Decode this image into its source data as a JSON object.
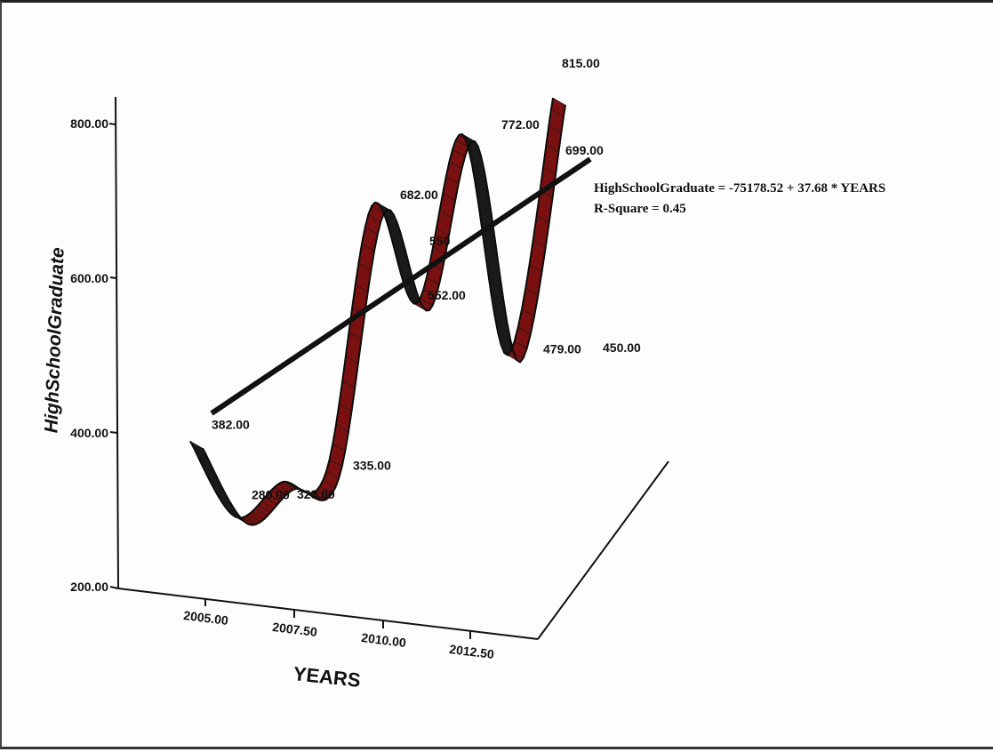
{
  "chart_data": {
    "type": "line",
    "xlabel": "YEARS",
    "ylabel": "HighSchoolGraduate",
    "x_ticks": [
      "2005.00",
      "2007.50",
      "2010.00",
      "2012.50"
    ],
    "y_ticks": [
      "200.00",
      "400.00",
      "600.00",
      "800.00"
    ],
    "series": [
      {
        "x": [
          2005,
          2006,
          2007,
          2008,
          2009,
          2010,
          2011,
          2012,
          2013
        ],
        "values": [
          382,
          280,
          323,
          335,
          682,
          552,
          772,
          479,
          815
        ],
        "labels": [
          "382.00",
          "280.00",
          "323.00",
          "335.00",
          "682.00",
          "552.00",
          "772.00",
          "479.00",
          "815.00"
        ]
      }
    ],
    "extra_labels": [
      "550",
      "699.00",
      "450.00"
    ],
    "fit_line": {
      "equation": "HighSchoolGraduate = -75178.52 + 37.68 * YEARS",
      "r_square": "R-Square = 0.45"
    },
    "ylim": [
      200,
      800
    ],
    "colors": {
      "ribbon_dark": "#1a1a1a",
      "ribbon_red": "#7a1010",
      "fit_line": "#111111"
    }
  }
}
